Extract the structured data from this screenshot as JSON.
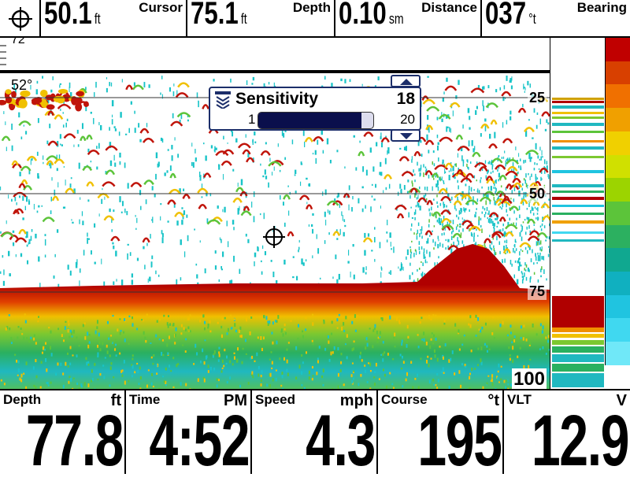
{
  "top_bar": {
    "crosshair_icon": "crosshair-icon",
    "cursor": {
      "value": "50.1",
      "unit": "ft",
      "label": "Cursor"
    },
    "depth": {
      "value": "75.1",
      "unit": "ft",
      "label": "Depth"
    },
    "distance": {
      "value": "0.10",
      "unit": "sm",
      "label": "Distance"
    },
    "bearing": {
      "value": "037",
      "unit": "°t",
      "label": "Bearing"
    }
  },
  "sonar": {
    "top_depth_label": "72",
    "water_temp": "52°",
    "depth_scale": [
      "25",
      "50",
      "75",
      "100"
    ],
    "colors": {
      "bottom": "#b00000",
      "fish_red": "#c0140a",
      "fish_yellow": "#f0c000",
      "clutter": "#19c4c8",
      "grass": "#5cc43a"
    }
  },
  "sensitivity": {
    "title": "Sensitivity",
    "value": 18,
    "min": "1",
    "max": "20",
    "value_label": "18"
  },
  "bottom_bar": {
    "depth": {
      "label": "Depth",
      "unit": "ft",
      "value": "77.8"
    },
    "time": {
      "label": "Time",
      "unit": "PM",
      "value": "4:52"
    },
    "speed": {
      "label": "Speed",
      "unit": "mph",
      "value": "4.3"
    },
    "course": {
      "label": "Course",
      "unit": "°t",
      "value": "195"
    },
    "vlt": {
      "label": "VLT",
      "unit": "V",
      "value": "12.9"
    }
  },
  "color_scale": [
    "#c00000",
    "#d84000",
    "#f07000",
    "#f0a000",
    "#f0d000",
    "#d0e000",
    "#9cd400",
    "#5cc43a",
    "#2cb060",
    "#10a890",
    "#10b0c0",
    "#20c4e0",
    "#40d8f0",
    "#70e8f8"
  ]
}
